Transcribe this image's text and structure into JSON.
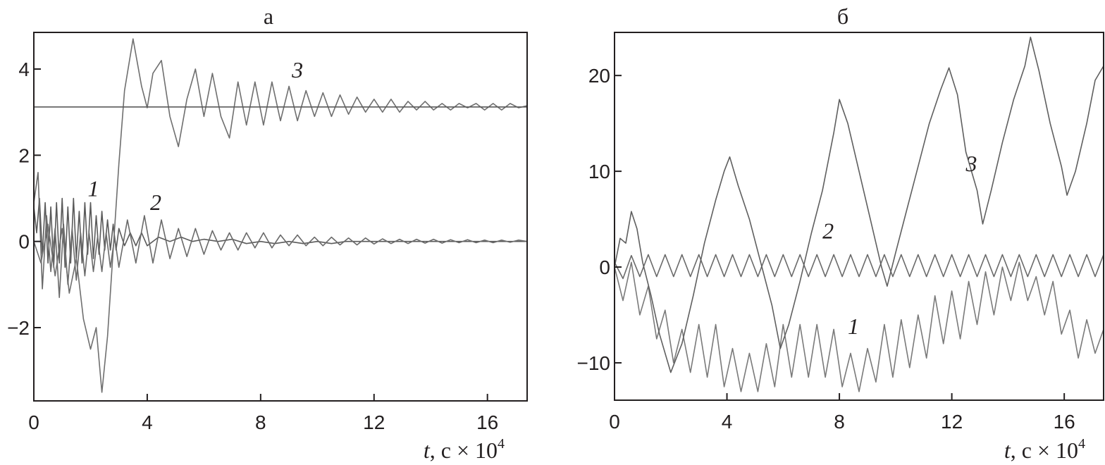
{
  "chart_data": [
    {
      "type": "line",
      "title": "а",
      "xlabel": "t, с × 10^4",
      "xlabel_parts": {
        "var": "t",
        "rest": ", с × 10",
        "sup": "4"
      },
      "ylabel": "",
      "xlim": [
        0,
        17.4
      ],
      "ylim": [
        -3.7,
        4.85
      ],
      "xticks": [
        0,
        4,
        8,
        12,
        16
      ],
      "yticks": [
        -2,
        0,
        2,
        4
      ],
      "ytick_labels": [
        "−2",
        "0",
        "2",
        "4"
      ],
      "grid": false,
      "hlines": [
        3.12
      ],
      "series": [
        {
          "name": "1",
          "color": "#5a5a5a",
          "x": [
            0,
            0.1,
            0.2,
            0.3,
            0.4,
            0.5,
            0.6,
            0.7,
            0.8,
            0.9,
            1.0,
            1.1,
            1.2,
            1.3,
            1.4,
            1.5,
            1.6,
            1.7,
            1.8,
            1.9,
            2.0,
            2.1,
            2.2,
            2.3,
            2.4,
            2.5,
            2.6,
            2.7,
            2.8,
            2.9,
            3.0,
            3.2,
            3.4,
            3.6,
            3.8,
            4.0,
            4.4,
            4.8,
            5.2,
            5.6,
            6.0,
            6.5,
            7.0,
            7.5,
            8.0,
            8.5,
            9.0,
            9.5,
            10.0,
            10.5,
            11.0,
            11.5,
            12.0,
            12.5,
            13.0,
            13.5,
            14.0,
            14.5,
            15.0,
            15.5,
            16.0,
            16.5,
            17.0,
            17.4
          ],
          "values": [
            0.8,
            0.2,
            1.0,
            -0.3,
            0.9,
            -0.5,
            0.8,
            -0.6,
            0.9,
            -0.5,
            1.0,
            -0.6,
            0.8,
            -0.5,
            1.0,
            -0.4,
            0.7,
            -0.5,
            0.9,
            -0.3,
            0.9,
            -0.4,
            0.6,
            -0.3,
            0.7,
            -0.2,
            0.5,
            -0.2,
            0.4,
            -0.2,
            0.3,
            -0.1,
            0.2,
            -0.1,
            0.2,
            -0.1,
            0.1,
            0.0,
            0.1,
            0.0,
            0.05,
            0.0,
            0.05,
            -0.05,
            0.0,
            -0.05,
            0.0,
            -0.05,
            0.0,
            -0.05,
            0.0,
            0.0,
            0.0,
            0.0,
            0.0,
            0.0,
            0.0,
            0.0,
            0.0,
            0.0,
            0.0,
            0.0,
            0.0,
            0.0
          ]
        },
        {
          "name": "2",
          "color": "#6a6a6a",
          "x": [
            0,
            0.15,
            0.3,
            0.45,
            0.6,
            0.75,
            0.9,
            1.05,
            1.2,
            1.35,
            1.5,
            1.65,
            1.8,
            1.95,
            2.1,
            2.25,
            2.4,
            2.55,
            2.7,
            2.85,
            3.0,
            3.3,
            3.6,
            3.9,
            4.2,
            4.5,
            4.8,
            5.1,
            5.4,
            5.7,
            6.0,
            6.3,
            6.6,
            6.9,
            7.2,
            7.5,
            7.8,
            8.1,
            8.4,
            8.7,
            9.0,
            9.3,
            9.6,
            9.9,
            10.2,
            10.5,
            10.8,
            11.1,
            11.4,
            11.7,
            12.0,
            12.3,
            12.6,
            12.9,
            13.2,
            13.5,
            13.8,
            14.1,
            14.4,
            14.7,
            15.0,
            15.3,
            15.6,
            15.9,
            16.2,
            16.5,
            16.8,
            17.1,
            17.4
          ],
          "values": [
            0.9,
            1.6,
            -1.1,
            0.6,
            -0.7,
            0.3,
            -1.3,
            0.4,
            -1.0,
            0.3,
            -0.9,
            0.2,
            -0.8,
            0.2,
            -0.7,
            0.1,
            -0.7,
            0.2,
            -0.6,
            0.1,
            -0.6,
            0.5,
            -0.5,
            0.6,
            -0.5,
            0.5,
            -0.4,
            0.3,
            -0.35,
            0.3,
            -0.3,
            0.25,
            -0.2,
            0.2,
            -0.2,
            0.2,
            -0.15,
            0.2,
            -0.15,
            0.15,
            -0.1,
            0.15,
            -0.1,
            0.1,
            -0.1,
            0.1,
            -0.08,
            0.08,
            -0.08,
            0.08,
            -0.06,
            0.06,
            -0.05,
            0.05,
            -0.05,
            0.05,
            -0.04,
            0.05,
            -0.04,
            0.04,
            -0.03,
            0.04,
            -0.03,
            0.03,
            -0.03,
            0.03,
            -0.02,
            0.03,
            0.0
          ]
        },
        {
          "name": "3",
          "color": "#6f6f6f",
          "x": [
            0,
            0.25,
            0.5,
            0.75,
            1.0,
            1.25,
            1.5,
            1.75,
            2.0,
            2.2,
            2.4,
            2.6,
            2.8,
            3.0,
            3.2,
            3.5,
            3.8,
            4.0,
            4.2,
            4.5,
            4.8,
            5.1,
            5.4,
            5.7,
            6.0,
            6.3,
            6.6,
            6.9,
            7.2,
            7.5,
            7.8,
            8.1,
            8.4,
            8.7,
            9.0,
            9.3,
            9.6,
            9.9,
            10.2,
            10.5,
            10.8,
            11.1,
            11.4,
            11.7,
            12.0,
            12.3,
            12.6,
            12.9,
            13.2,
            13.5,
            13.8,
            14.1,
            14.4,
            14.7,
            15.0,
            15.3,
            15.6,
            15.9,
            16.2,
            16.5,
            16.8,
            17.1,
            17.4
          ],
          "values": [
            0.0,
            -0.5,
            0.4,
            -0.8,
            0.3,
            -1.2,
            -0.4,
            -1.8,
            -2.5,
            -2.0,
            -3.5,
            -2.2,
            -0.2,
            1.8,
            3.5,
            4.7,
            3.6,
            3.1,
            3.9,
            4.2,
            2.9,
            2.2,
            3.3,
            4.0,
            2.9,
            3.9,
            2.9,
            2.4,
            3.7,
            2.7,
            3.7,
            2.7,
            3.7,
            2.8,
            3.6,
            2.8,
            3.5,
            2.9,
            3.45,
            2.9,
            3.4,
            2.95,
            3.35,
            3.0,
            3.3,
            3.0,
            3.3,
            3.0,
            3.25,
            3.05,
            3.25,
            3.05,
            3.2,
            3.05,
            3.2,
            3.1,
            3.2,
            3.05,
            3.2,
            3.05,
            3.2,
            3.1,
            3.15
          ]
        }
      ],
      "annotations": [
        {
          "text": "1",
          "x": 2.1,
          "y": 1.05
        },
        {
          "text": "2",
          "x": 4.3,
          "y": 0.73
        },
        {
          "text": "3",
          "x": 9.3,
          "y": 3.8
        }
      ]
    },
    {
      "type": "line",
      "title": "б",
      "xlabel": "t, с × 10^4",
      "xlabel_parts": {
        "var": "t",
        "rest": ", с × 10",
        "sup": "4"
      },
      "ylabel": "",
      "xlim": [
        0,
        17.4
      ],
      "ylim": [
        -13.9,
        24.5
      ],
      "xticks": [
        0,
        4,
        8,
        12,
        16
      ],
      "yticks": [
        -10,
        0,
        10,
        20
      ],
      "ytick_labels": [
        "−10",
        "0",
        "10",
        "20"
      ],
      "grid": false,
      "series": [
        {
          "name": "1",
          "color": "#7a7a7a",
          "x": [
            0,
            0.3,
            0.6,
            0.9,
            1.2,
            1.5,
            1.8,
            2.1,
            2.4,
            2.7,
            3.0,
            3.3,
            3.6,
            3.9,
            4.2,
            4.5,
            4.8,
            5.1,
            5.4,
            5.7,
            6.0,
            6.3,
            6.6,
            6.9,
            7.2,
            7.5,
            7.8,
            8.1,
            8.4,
            8.7,
            9.0,
            9.3,
            9.6,
            9.9,
            10.2,
            10.5,
            10.8,
            11.1,
            11.4,
            11.7,
            12.0,
            12.3,
            12.6,
            12.9,
            13.2,
            13.5,
            13.8,
            14.1,
            14.4,
            14.7,
            15.0,
            15.3,
            15.6,
            15.9,
            16.2,
            16.5,
            16.8,
            17.1,
            17.4
          ],
          "values": [
            0.0,
            -3.5,
            0.5,
            -5.0,
            -2.0,
            -7.5,
            -4.5,
            -10.0,
            -6.5,
            -11.0,
            -6.0,
            -11.5,
            -6.0,
            -12.5,
            -8.5,
            -13.0,
            -9.0,
            -13.0,
            -8.0,
            -12.5,
            -6.0,
            -11.5,
            -6.0,
            -11.5,
            -6.0,
            -11.5,
            -6.5,
            -12.5,
            -9.0,
            -13.0,
            -8.5,
            -12.0,
            -6.0,
            -11.5,
            -5.5,
            -10.5,
            -5.0,
            -9.5,
            -3.0,
            -8.0,
            -2.5,
            -7.5,
            -1.5,
            -6.0,
            -0.5,
            -5.0,
            0.0,
            -3.5,
            0.5,
            -3.5,
            -1.0,
            -5.0,
            -1.5,
            -7.0,
            -4.5,
            -9.5,
            -5.5,
            -9.0,
            -6.5
          ]
        },
        {
          "name": "2",
          "color": "#6a6a6a",
          "x": [
            0,
            0.3,
            0.6,
            0.9,
            1.2,
            1.5,
            1.8,
            2.1,
            2.4,
            2.7,
            3.0,
            3.3,
            3.6,
            3.9,
            4.2,
            4.5,
            4.8,
            5.1,
            5.4,
            5.7,
            6.0,
            6.3,
            6.6,
            6.9,
            7.2,
            7.5,
            7.8,
            8.1,
            8.4,
            8.7,
            9.0,
            9.3,
            9.6,
            9.9,
            10.2,
            10.5,
            10.8,
            11.1,
            11.4,
            11.7,
            12.0,
            12.3,
            12.6,
            12.9,
            13.2,
            13.5,
            13.8,
            14.1,
            14.4,
            14.7,
            15.0,
            15.3,
            15.6,
            15.9,
            16.2,
            16.5,
            16.8,
            17.1,
            17.4
          ],
          "values": [
            0.5,
            -1.2,
            1.2,
            -1.0,
            1.3,
            -1.0,
            1.3,
            -1.0,
            1.3,
            -1.0,
            1.3,
            -1.0,
            1.3,
            -1.0,
            1.3,
            -1.0,
            1.3,
            -1.0,
            1.3,
            -1.0,
            1.3,
            -1.0,
            1.3,
            -1.0,
            1.3,
            -1.0,
            1.3,
            -1.0,
            1.3,
            -1.0,
            1.3,
            -1.0,
            1.3,
            -1.0,
            1.3,
            -1.0,
            1.3,
            -1.0,
            1.3,
            -1.0,
            1.3,
            -1.0,
            1.3,
            -1.0,
            1.3,
            -1.0,
            1.3,
            -1.0,
            1.3,
            -1.0,
            1.3,
            -1.0,
            1.3,
            -1.0,
            1.3,
            -1.0,
            1.3,
            -1.0,
            1.3
          ]
        },
        {
          "name": "3",
          "color": "#5f5f5f",
          "x": [
            0,
            0.2,
            0.4,
            0.6,
            0.8,
            1.0,
            1.3,
            1.6,
            2.0,
            2.4,
            2.8,
            3.2,
            3.6,
            3.9,
            4.1,
            4.4,
            4.8,
            5.2,
            5.6,
            5.9,
            6.2,
            6.6,
            7.0,
            7.4,
            7.8,
            8.0,
            8.3,
            8.7,
            9.1,
            9.5,
            9.7,
            10.0,
            10.4,
            10.8,
            11.2,
            11.6,
            11.9,
            12.2,
            12.5,
            12.9,
            13.1,
            13.4,
            13.8,
            14.2,
            14.6,
            14.8,
            15.1,
            15.5,
            15.9,
            16.1,
            16.4,
            16.8,
            17.1,
            17.4
          ],
          "values": [
            0.0,
            3.0,
            2.5,
            5.8,
            4.0,
            0.5,
            -3.0,
            -7.0,
            -11.0,
            -8.0,
            -3.0,
            2.5,
            7.0,
            10.0,
            11.5,
            8.5,
            5.0,
            0.5,
            -4.0,
            -8.5,
            -6.0,
            -1.5,
            3.5,
            8.0,
            14.0,
            17.5,
            15.0,
            10.0,
            5.0,
            0.0,
            -2.0,
            1.5,
            6.0,
            10.5,
            15.0,
            18.5,
            20.8,
            18.0,
            12.0,
            8.0,
            4.5,
            8.0,
            13.0,
            17.5,
            21.0,
            24.0,
            20.5,
            15.0,
            10.5,
            7.5,
            10.0,
            15.0,
            19.5,
            21.0
          ]
        }
      ],
      "annotations": [
        {
          "text": "1",
          "x": 8.5,
          "y": -7.0
        },
        {
          "text": "2",
          "x": 7.6,
          "y": 3.0
        },
        {
          "text": "3",
          "x": 12.7,
          "y": 10.0
        }
      ]
    }
  ]
}
